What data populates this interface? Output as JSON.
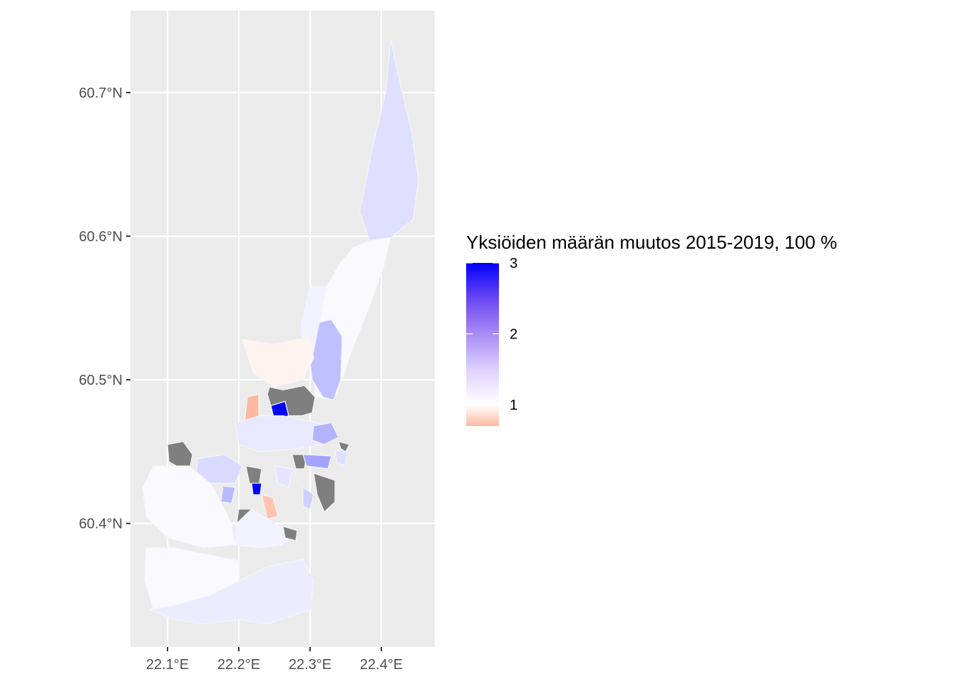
{
  "chart_data": {
    "type": "choropleth",
    "xlabel": "",
    "ylabel": "",
    "x_ticks": [
      {
        "value": 22.1,
        "label": "22.1°E"
      },
      {
        "value": 22.2,
        "label": "22.2°E"
      },
      {
        "value": 22.3,
        "label": "22.3°E"
      },
      {
        "value": 22.4,
        "label": "22.4°E"
      }
    ],
    "y_ticks": [
      {
        "value": 60.4,
        "label": "60.4°N"
      },
      {
        "value": 60.5,
        "label": "60.5°N"
      },
      {
        "value": 60.6,
        "label": "60.6°N"
      },
      {
        "value": 60.7,
        "label": "60.7°N"
      }
    ],
    "xlim": [
      22.048,
      22.475
    ],
    "ylim": [
      60.314,
      60.757
    ],
    "panel_background": "#ebebeb",
    "grid": true,
    "na_color": "#7f7f7f",
    "legend": {
      "title": "Yksiöiden määrän muutos 2015-2019, 100 %",
      "position": "right",
      "range": [
        0.7,
        3.0
      ],
      "breaks": [
        {
          "value": 1,
          "label": "1"
        },
        {
          "value": 2,
          "label": "2"
        },
        {
          "value": 3,
          "label": "3"
        }
      ],
      "colors": {
        "low": "#ffb8a0",
        "mid": "#ffffff",
        "midpoint": 1,
        "high": "#0000ff"
      }
    },
    "regions": [
      {
        "value": 1.15,
        "coords": [
          [
            22.413,
            60.737
          ],
          [
            22.427,
            60.705
          ],
          [
            22.443,
            60.672
          ],
          [
            22.452,
            60.639
          ],
          [
            22.445,
            60.612
          ],
          [
            22.413,
            60.599
          ],
          [
            22.383,
            60.597
          ],
          [
            22.37,
            60.617
          ],
          [
            22.386,
            60.658
          ],
          [
            22.406,
            60.7
          ]
        ]
      },
      {
        "value": 1.02,
        "coords": [
          [
            22.383,
            60.597
          ],
          [
            22.413,
            60.599
          ],
          [
            22.404,
            60.58
          ],
          [
            22.385,
            60.553
          ],
          [
            22.36,
            60.522
          ],
          [
            22.345,
            60.5
          ],
          [
            22.333,
            60.486
          ],
          [
            22.307,
            60.488
          ],
          [
            22.305,
            60.512
          ],
          [
            22.313,
            60.54
          ],
          [
            22.323,
            60.565
          ],
          [
            22.343,
            60.582
          ],
          [
            22.36,
            60.592
          ]
        ]
      },
      {
        "value": 1.05,
        "coords": [
          [
            22.3,
            60.565
          ],
          [
            22.323,
            60.565
          ],
          [
            22.313,
            60.54
          ],
          [
            22.305,
            60.512
          ],
          [
            22.29,
            60.52
          ],
          [
            22.288,
            60.54
          ]
        ]
      },
      {
        "value": 1.35,
        "coords": [
          [
            22.313,
            60.54
          ],
          [
            22.33,
            60.542
          ],
          [
            22.345,
            60.53
          ],
          [
            22.343,
            60.5
          ],
          [
            22.333,
            60.486
          ],
          [
            22.318,
            60.488
          ],
          [
            22.303,
            60.5
          ],
          [
            22.3,
            60.512
          ],
          [
            22.305,
            60.52
          ]
        ]
      },
      {
        "value": 0.95,
        "coords": [
          [
            22.205,
            60.528
          ],
          [
            22.25,
            60.525
          ],
          [
            22.3,
            60.53
          ],
          [
            22.305,
            60.515
          ],
          [
            22.29,
            60.5
          ],
          [
            22.25,
            60.495
          ],
          [
            22.22,
            60.505
          ]
        ]
      },
      {
        "value": 0.5,
        "coords": [
          [
            22.212,
            60.488
          ],
          [
            22.228,
            60.49
          ],
          [
            22.228,
            60.474
          ],
          [
            22.218,
            60.465
          ],
          [
            22.208,
            60.47
          ]
        ]
      },
      {
        "value": 3.0,
        "coords": [
          [
            22.245,
            60.482
          ],
          [
            22.265,
            60.485
          ],
          [
            22.27,
            60.475
          ],
          [
            22.25,
            60.472
          ]
        ]
      },
      {
        "value": null,
        "coords": [
          [
            22.243,
            60.495
          ],
          [
            22.262,
            60.493
          ],
          [
            22.292,
            60.496
          ],
          [
            22.307,
            60.488
          ],
          [
            22.303,
            60.477
          ],
          [
            22.288,
            60.475
          ],
          [
            22.27,
            60.475
          ],
          [
            22.265,
            60.485
          ],
          [
            22.245,
            60.482
          ],
          [
            22.24,
            60.49
          ]
        ]
      },
      {
        "value": 1.1,
        "coords": [
          [
            22.195,
            60.47
          ],
          [
            22.23,
            60.475
          ],
          [
            22.262,
            60.475
          ],
          [
            22.29,
            60.472
          ],
          [
            22.31,
            60.47
          ],
          [
            22.33,
            60.468
          ],
          [
            22.34,
            60.46
          ],
          [
            22.32,
            60.455
          ],
          [
            22.28,
            60.452
          ],
          [
            22.23,
            60.45
          ],
          [
            22.2,
            60.455
          ]
        ]
      },
      {
        "value": 1.45,
        "coords": [
          [
            22.305,
            60.468
          ],
          [
            22.33,
            60.47
          ],
          [
            22.34,
            60.46
          ],
          [
            22.32,
            60.455
          ],
          [
            22.303,
            60.458
          ]
        ]
      },
      {
        "value": null,
        "coords": [
          [
            22.1,
            60.455
          ],
          [
            22.122,
            60.457
          ],
          [
            22.135,
            60.448
          ],
          [
            22.13,
            60.435
          ],
          [
            22.102,
            60.443
          ]
        ]
      },
      {
        "value": 1.18,
        "coords": [
          [
            22.142,
            60.445
          ],
          [
            22.18,
            60.448
          ],
          [
            22.205,
            60.44
          ],
          [
            22.195,
            60.428
          ],
          [
            22.16,
            60.428
          ],
          [
            22.14,
            60.432
          ]
        ]
      },
      {
        "value": 1.4,
        "coords": [
          [
            22.178,
            60.426
          ],
          [
            22.195,
            60.425
          ],
          [
            22.19,
            60.414
          ],
          [
            22.175,
            60.415
          ]
        ]
      },
      {
        "value": null,
        "coords": [
          [
            22.21,
            60.44
          ],
          [
            22.232,
            60.438
          ],
          [
            22.228,
            60.425
          ],
          [
            22.215,
            60.428
          ]
        ]
      },
      {
        "value": 3.0,
        "coords": [
          [
            22.218,
            60.428
          ],
          [
            22.232,
            60.428
          ],
          [
            22.23,
            60.42
          ],
          [
            22.22,
            60.42
          ]
        ]
      },
      {
        "value": null,
        "coords": [
          [
            22.275,
            60.448
          ],
          [
            22.295,
            60.448
          ],
          [
            22.292,
            60.438
          ],
          [
            22.28,
            60.438
          ]
        ]
      },
      {
        "value": 1.55,
        "coords": [
          [
            22.29,
            60.448
          ],
          [
            22.33,
            60.447
          ],
          [
            22.325,
            60.438
          ],
          [
            22.295,
            60.44
          ]
        ]
      },
      {
        "value": null,
        "coords": [
          [
            22.305,
            60.435
          ],
          [
            22.335,
            60.43
          ],
          [
            22.335,
            60.415
          ],
          [
            22.32,
            60.408
          ],
          [
            22.31,
            60.42
          ]
        ]
      },
      {
        "value": 1.25,
        "coords": [
          [
            22.29,
            60.425
          ],
          [
            22.305,
            60.42
          ],
          [
            22.3,
            60.41
          ],
          [
            22.29,
            60.412
          ]
        ]
      },
      {
        "value": 1.12,
        "coords": [
          [
            22.25,
            60.44
          ],
          [
            22.275,
            60.438
          ],
          [
            22.27,
            60.425
          ],
          [
            22.255,
            60.428
          ]
        ]
      },
      {
        "value": 1.15,
        "coords": [
          [
            22.335,
            60.45
          ],
          [
            22.352,
            60.452
          ],
          [
            22.35,
            60.44
          ],
          [
            22.338,
            60.442
          ]
        ]
      },
      {
        "value": null,
        "coords": [
          [
            22.34,
            60.457
          ],
          [
            22.355,
            60.455
          ],
          [
            22.35,
            60.45
          ],
          [
            22.343,
            60.452
          ]
        ]
      },
      {
        "value": 1.02,
        "coords": [
          [
            22.08,
            60.44
          ],
          [
            22.13,
            60.44
          ],
          [
            22.16,
            60.428
          ],
          [
            22.175,
            60.415
          ],
          [
            22.19,
            60.4
          ],
          [
            22.195,
            60.385
          ],
          [
            22.15,
            60.383
          ],
          [
            22.1,
            60.39
          ],
          [
            22.07,
            60.405
          ],
          [
            22.065,
            60.425
          ]
        ]
      },
      {
        "value": null,
        "coords": [
          [
            22.2,
            60.41
          ],
          [
            22.218,
            60.41
          ],
          [
            22.22,
            60.395
          ],
          [
            22.205,
            60.39
          ],
          [
            22.197,
            60.4
          ]
        ]
      },
      {
        "value": 0.75,
        "coords": [
          [
            22.232,
            60.42
          ],
          [
            22.248,
            60.418
          ],
          [
            22.255,
            60.405
          ],
          [
            22.24,
            60.403
          ]
        ]
      },
      {
        "value": 1.05,
        "coords": [
          [
            22.195,
            60.385
          ],
          [
            22.23,
            60.383
          ],
          [
            22.26,
            60.385
          ],
          [
            22.28,
            60.392
          ],
          [
            22.25,
            60.4
          ],
          [
            22.218,
            60.41
          ],
          [
            22.197,
            60.4
          ]
        ]
      },
      {
        "value": null,
        "coords": [
          [
            22.262,
            60.398
          ],
          [
            22.282,
            60.395
          ],
          [
            22.28,
            60.388
          ],
          [
            22.265,
            60.39
          ]
        ]
      },
      {
        "value": 1.02,
        "coords": [
          [
            22.07,
            60.383
          ],
          [
            22.11,
            60.383
          ],
          [
            22.16,
            60.378
          ],
          [
            22.2,
            60.374
          ],
          [
            22.2,
            60.36
          ],
          [
            22.16,
            60.35
          ],
          [
            22.11,
            60.343
          ],
          [
            22.08,
            60.34
          ],
          [
            22.068,
            60.36
          ]
        ]
      },
      {
        "value": 1.08,
        "coords": [
          [
            22.075,
            60.34
          ],
          [
            22.11,
            60.343
          ],
          [
            22.16,
            60.35
          ],
          [
            22.2,
            60.36
          ],
          [
            22.24,
            60.37
          ],
          [
            22.29,
            60.375
          ],
          [
            22.305,
            60.36
          ],
          [
            22.3,
            60.34
          ],
          [
            22.27,
            60.335
          ],
          [
            22.24,
            60.33
          ],
          [
            22.2,
            60.333
          ],
          [
            22.15,
            60.33
          ],
          [
            22.11,
            60.333
          ]
        ]
      }
    ]
  }
}
